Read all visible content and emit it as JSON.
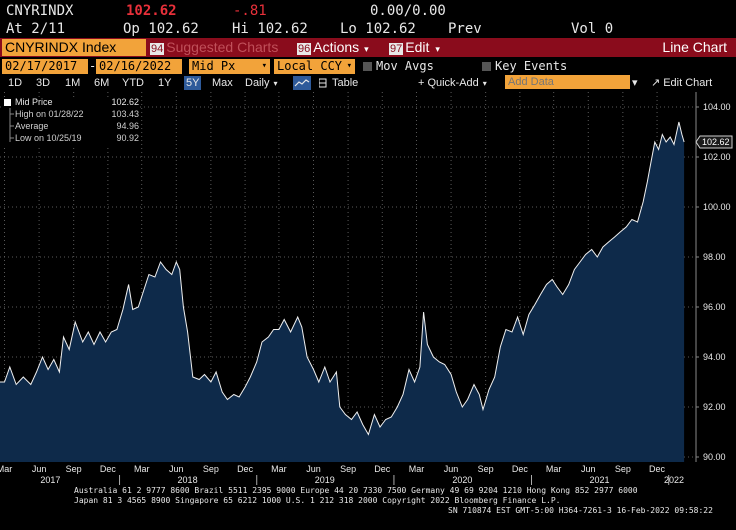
{
  "quote": {
    "ticker": "CNYRINDX",
    "last": "102.62",
    "change": "-.81",
    "bid_ask": "0.00/0.00",
    "at": "At 2/11",
    "open": "Op 102.62",
    "high": "Hi 102.62",
    "low": "Lo 102.62",
    "prev": "Prev",
    "vol": "Vol 0"
  },
  "menubar": {
    "security": "CNYRINDX Index",
    "suggested_num": "94",
    "suggested": "Suggested Charts",
    "actions_num": "96",
    "actions": "Actions",
    "edit_num": "97",
    "edit": "Edit",
    "chart_type": "Line Chart"
  },
  "fields": {
    "start_date": "02/17/2017",
    "end_date": "02/16/2022",
    "field": "Mid Px",
    "currency": "Local CCY",
    "mov_avgs": "Mov Avgs",
    "key_events": "Key Events"
  },
  "periods": [
    "1D",
    "3D",
    "1M",
    "6M",
    "YTD",
    "1Y",
    "5Y",
    "Max"
  ],
  "toolbar": {
    "frequency": "Daily",
    "table": "Table",
    "quick_add": "Quick-Add",
    "add_data_placeholder": "Add Data",
    "edit_chart": "Edit Chart"
  },
  "legend": [
    {
      "label": "Mid Price",
      "value": "102.62"
    },
    {
      "label": "High on 01/28/22",
      "value": "103.43"
    },
    {
      "label": "Average",
      "value": "94.96"
    },
    {
      "label": "Low on 10/25/19",
      "value": "90.92"
    }
  ],
  "colors": {
    "accent": "#f2a33a",
    "menubar": "#8a0c1c",
    "change": "#e8303a",
    "area": "#0e2a4a"
  },
  "chart_data": {
    "type": "area",
    "title": "",
    "xlabel": "",
    "ylabel": "",
    "ylim": [
      89.8,
      104.6
    ],
    "y_ticks": [
      104,
      102,
      100,
      98,
      96,
      94,
      92,
      90
    ],
    "y_tick_labels": [
      "104.00",
      "102.00",
      "100.00",
      "98.00",
      "96.00",
      "94.00",
      "92.00",
      "90.00"
    ],
    "x_ticks": [
      {
        "date": "2017-03-01",
        "label": "Mar"
      },
      {
        "date": "2017-06-01",
        "label": "Jun"
      },
      {
        "date": "2017-09-01",
        "label": "Sep"
      },
      {
        "date": "2017-12-01",
        "label": "Dec"
      },
      {
        "date": "2018-03-01",
        "label": "Mar"
      },
      {
        "date": "2018-06-01",
        "label": "Jun"
      },
      {
        "date": "2018-09-01",
        "label": "Sep"
      },
      {
        "date": "2018-12-01",
        "label": "Dec"
      },
      {
        "date": "2019-03-01",
        "label": "Mar"
      },
      {
        "date": "2019-06-01",
        "label": "Jun"
      },
      {
        "date": "2019-09-01",
        "label": "Sep"
      },
      {
        "date": "2019-12-01",
        "label": "Dec"
      },
      {
        "date": "2020-03-01",
        "label": "Mar"
      },
      {
        "date": "2020-06-01",
        "label": "Jun"
      },
      {
        "date": "2020-09-01",
        "label": "Sep"
      },
      {
        "date": "2020-12-01",
        "label": "Dec"
      },
      {
        "date": "2021-03-01",
        "label": "Mar"
      },
      {
        "date": "2021-06-01",
        "label": "Jun"
      },
      {
        "date": "2021-09-01",
        "label": "Sep"
      },
      {
        "date": "2021-12-01",
        "label": "Dec"
      }
    ],
    "year_labels": [
      {
        "date": "2017-07-01",
        "label": "2017"
      },
      {
        "date": "2018-07-01",
        "label": "2018"
      },
      {
        "date": "2019-07-01",
        "label": "2019"
      },
      {
        "date": "2020-07-01",
        "label": "2020"
      },
      {
        "date": "2021-07-01",
        "label": "2021"
      },
      {
        "date": "2022-01-15",
        "label": "2022"
      }
    ],
    "x_range": [
      "2017-02-17",
      "2022-02-16"
    ],
    "last_label": "102.62",
    "series": [
      {
        "name": "Mid Price",
        "points": [
          [
            "2017-02-17",
            93.0
          ],
          [
            "2017-03-01",
            93.0
          ],
          [
            "2017-03-15",
            93.6
          ],
          [
            "2017-04-01",
            92.9
          ],
          [
            "2017-04-20",
            93.2
          ],
          [
            "2017-05-10",
            92.9
          ],
          [
            "2017-05-25",
            93.4
          ],
          [
            "2017-06-10",
            94.0
          ],
          [
            "2017-06-25",
            93.5
          ],
          [
            "2017-07-10",
            93.9
          ],
          [
            "2017-07-25",
            93.4
          ],
          [
            "2017-08-05",
            94.8
          ],
          [
            "2017-08-20",
            94.3
          ],
          [
            "2017-09-05",
            95.4
          ],
          [
            "2017-09-25",
            94.6
          ],
          [
            "2017-10-10",
            95.0
          ],
          [
            "2017-10-25",
            94.5
          ],
          [
            "2017-11-10",
            95.0
          ],
          [
            "2017-11-25",
            94.6
          ],
          [
            "2017-12-10",
            95.0
          ],
          [
            "2017-12-25",
            95.1
          ],
          [
            "2018-01-10",
            95.9
          ],
          [
            "2018-01-25",
            96.9
          ],
          [
            "2018-02-05",
            95.9
          ],
          [
            "2018-02-20",
            96.0
          ],
          [
            "2018-03-05",
            96.6
          ],
          [
            "2018-03-20",
            97.3
          ],
          [
            "2018-04-05",
            97.2
          ],
          [
            "2018-04-20",
            97.8
          ],
          [
            "2018-05-05",
            97.5
          ],
          [
            "2018-05-20",
            97.3
          ],
          [
            "2018-06-01",
            97.8
          ],
          [
            "2018-06-10",
            97.5
          ],
          [
            "2018-06-20",
            96.0
          ],
          [
            "2018-07-01",
            95.0
          ],
          [
            "2018-07-15",
            93.2
          ],
          [
            "2018-08-01",
            93.1
          ],
          [
            "2018-08-15",
            93.3
          ],
          [
            "2018-09-01",
            93.0
          ],
          [
            "2018-09-15",
            93.4
          ],
          [
            "2018-10-01",
            92.6
          ],
          [
            "2018-10-15",
            92.3
          ],
          [
            "2018-11-01",
            92.5
          ],
          [
            "2018-11-15",
            92.4
          ],
          [
            "2018-12-01",
            92.8
          ],
          [
            "2018-12-15",
            93.2
          ],
          [
            "2019-01-01",
            93.8
          ],
          [
            "2019-01-15",
            94.6
          ],
          [
            "2019-02-01",
            94.8
          ],
          [
            "2019-02-15",
            95.1
          ],
          [
            "2019-03-01",
            95.1
          ],
          [
            "2019-03-15",
            95.5
          ],
          [
            "2019-04-01",
            95.0
          ],
          [
            "2019-04-20",
            95.6
          ],
          [
            "2019-05-01",
            95.2
          ],
          [
            "2019-05-15",
            94.0
          ],
          [
            "2019-06-01",
            93.5
          ],
          [
            "2019-06-15",
            93.0
          ],
          [
            "2019-07-01",
            93.6
          ],
          [
            "2019-07-15",
            93.0
          ],
          [
            "2019-08-01",
            93.4
          ],
          [
            "2019-08-10",
            92.0
          ],
          [
            "2019-08-25",
            91.7
          ],
          [
            "2019-09-10",
            91.5
          ],
          [
            "2019-09-25",
            91.8
          ],
          [
            "2019-10-10",
            91.3
          ],
          [
            "2019-10-25",
            90.9
          ],
          [
            "2019-11-10",
            91.7
          ],
          [
            "2019-11-25",
            91.2
          ],
          [
            "2019-12-10",
            91.5
          ],
          [
            "2019-12-25",
            91.6
          ],
          [
            "2020-01-10",
            92.0
          ],
          [
            "2020-01-25",
            92.5
          ],
          [
            "2020-02-10",
            93.5
          ],
          [
            "2020-02-25",
            93.0
          ],
          [
            "2020-03-10",
            93.6
          ],
          [
            "2020-03-20",
            95.8
          ],
          [
            "2020-03-30",
            94.5
          ],
          [
            "2020-04-15",
            94.0
          ],
          [
            "2020-05-01",
            93.8
          ],
          [
            "2020-05-15",
            93.7
          ],
          [
            "2020-06-01",
            93.3
          ],
          [
            "2020-06-15",
            92.6
          ],
          [
            "2020-07-01",
            92.0
          ],
          [
            "2020-07-15",
            92.3
          ],
          [
            "2020-08-01",
            92.9
          ],
          [
            "2020-08-15",
            92.5
          ],
          [
            "2020-08-25",
            91.9
          ],
          [
            "2020-09-10",
            92.7
          ],
          [
            "2020-09-25",
            93.2
          ],
          [
            "2020-10-10",
            94.4
          ],
          [
            "2020-10-25",
            95.1
          ],
          [
            "2020-11-10",
            95.0
          ],
          [
            "2020-11-25",
            95.6
          ],
          [
            "2020-12-10",
            94.9
          ],
          [
            "2020-12-25",
            95.7
          ],
          [
            "2021-01-10",
            96.1
          ],
          [
            "2021-01-25",
            96.5
          ],
          [
            "2021-02-10",
            96.9
          ],
          [
            "2021-02-25",
            97.1
          ],
          [
            "2021-03-10",
            96.8
          ],
          [
            "2021-03-25",
            96.5
          ],
          [
            "2021-04-10",
            96.9
          ],
          [
            "2021-04-25",
            97.5
          ],
          [
            "2021-05-10",
            97.8
          ],
          [
            "2021-05-25",
            98.1
          ],
          [
            "2021-06-10",
            98.3
          ],
          [
            "2021-06-25",
            98.0
          ],
          [
            "2021-07-10",
            98.4
          ],
          [
            "2021-07-25",
            98.6
          ],
          [
            "2021-08-10",
            98.8
          ],
          [
            "2021-08-25",
            99.0
          ],
          [
            "2021-09-10",
            99.2
          ],
          [
            "2021-09-25",
            99.5
          ],
          [
            "2021-10-10",
            99.4
          ],
          [
            "2021-10-25",
            100.2
          ],
          [
            "2021-11-05",
            101.0
          ],
          [
            "2021-11-15",
            101.8
          ],
          [
            "2021-11-25",
            102.6
          ],
          [
            "2021-12-05",
            102.3
          ],
          [
            "2021-12-15",
            102.9
          ],
          [
            "2021-12-25",
            102.6
          ],
          [
            "2022-01-05",
            102.8
          ],
          [
            "2022-01-15",
            102.5
          ],
          [
            "2022-01-28",
            103.4
          ],
          [
            "2022-02-05",
            102.9
          ],
          [
            "2022-02-11",
            102.6
          ]
        ]
      }
    ]
  },
  "footer": {
    "line1": "Australia 61 2 9777 8600 Brazil 5511 2395 9000 Europe 44 20 7330 7500 Germany 49 69 9204 1210 Hong Kong 852 2977 6000",
    "line2": "Japan 81 3 4565 8900       Singapore 65 6212 1000       U.S. 1 212 318 2000              Copyright 2022 Bloomberg Finance L.P.",
    "line3": "SN 710874 EST  GMT-5:00 H364-7261-3 16-Feb-2022 09:58:22"
  }
}
